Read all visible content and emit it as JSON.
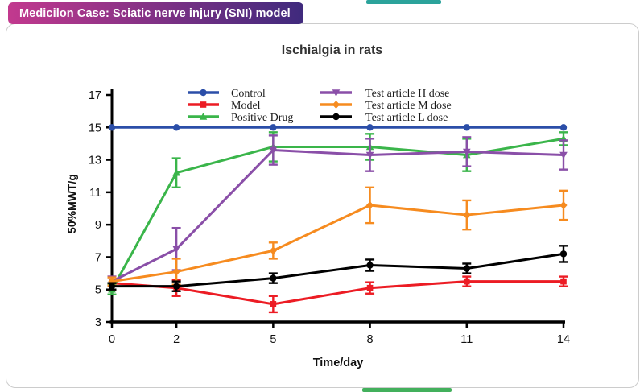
{
  "page": {
    "badge_label": "Medicilon Case: Sciatic nerve injury (SNI) model"
  },
  "colors": {
    "badge_gradient_left": "#c2398e",
    "badge_gradient_right": "#3f2a7d",
    "top_ribbon": "#2ba39b",
    "bottom_ribbon": "#43b05c",
    "axis": "#000000",
    "tick_label": "#111111",
    "legend_text": "#1a1a1a"
  },
  "chart_data": {
    "type": "line",
    "title": "Ischialgia in rats",
    "xlabel": "Time/day",
    "ylabel": "50%MWT/g",
    "x": [
      0,
      2,
      5,
      8,
      11,
      14
    ],
    "xlim": [
      0,
      14
    ],
    "ylim": [
      3,
      17
    ],
    "x_ticks": [
      0,
      2,
      5,
      8,
      11,
      14
    ],
    "y_ticks": [
      3,
      5,
      7,
      9,
      11,
      13,
      15,
      17
    ],
    "grid": false,
    "legend_position": "top-inside-two-columns",
    "series": [
      {
        "name": "Control",
        "color": "#2b4ea8",
        "marker": "circle",
        "values": [
          15,
          15,
          15,
          15,
          15,
          15
        ],
        "errors": [
          0,
          0,
          0,
          0,
          0,
          0
        ]
      },
      {
        "name": "Model",
        "color": "#ec1c24",
        "marker": "square",
        "values": [
          5.4,
          5.1,
          4.1,
          5.1,
          5.5,
          5.5
        ],
        "errors": [
          0.4,
          0.5,
          0.5,
          0.35,
          0.3,
          0.3
        ]
      },
      {
        "name": "Positive Drug",
        "color": "#3ab54a",
        "marker": "triangle-up",
        "values": [
          5.0,
          12.2,
          13.8,
          13.8,
          13.3,
          14.3
        ],
        "errors": [
          0.3,
          0.9,
          0.9,
          0.8,
          1.0,
          0.4
        ]
      },
      {
        "name": "Test article H dose",
        "color": "#8a4fa8",
        "marker": "triangle-down",
        "values": [
          5.5,
          7.5,
          13.6,
          13.3,
          13.5,
          13.3
        ],
        "errors": [
          0.3,
          1.3,
          0.9,
          1.0,
          0.9,
          0.9
        ]
      },
      {
        "name": "Test article M dose",
        "color": "#f68b1f",
        "marker": "diamond",
        "values": [
          5.5,
          6.1,
          7.4,
          10.2,
          9.6,
          10.2
        ],
        "errors": [
          0.25,
          0.8,
          0.5,
          1.1,
          0.9,
          0.9
        ]
      },
      {
        "name": "Test article L dose",
        "color": "#000000",
        "marker": "circle",
        "values": [
          5.2,
          5.2,
          5.7,
          6.5,
          6.3,
          7.2
        ],
        "errors": [
          0.2,
          0.3,
          0.3,
          0.35,
          0.3,
          0.5
        ]
      }
    ]
  }
}
